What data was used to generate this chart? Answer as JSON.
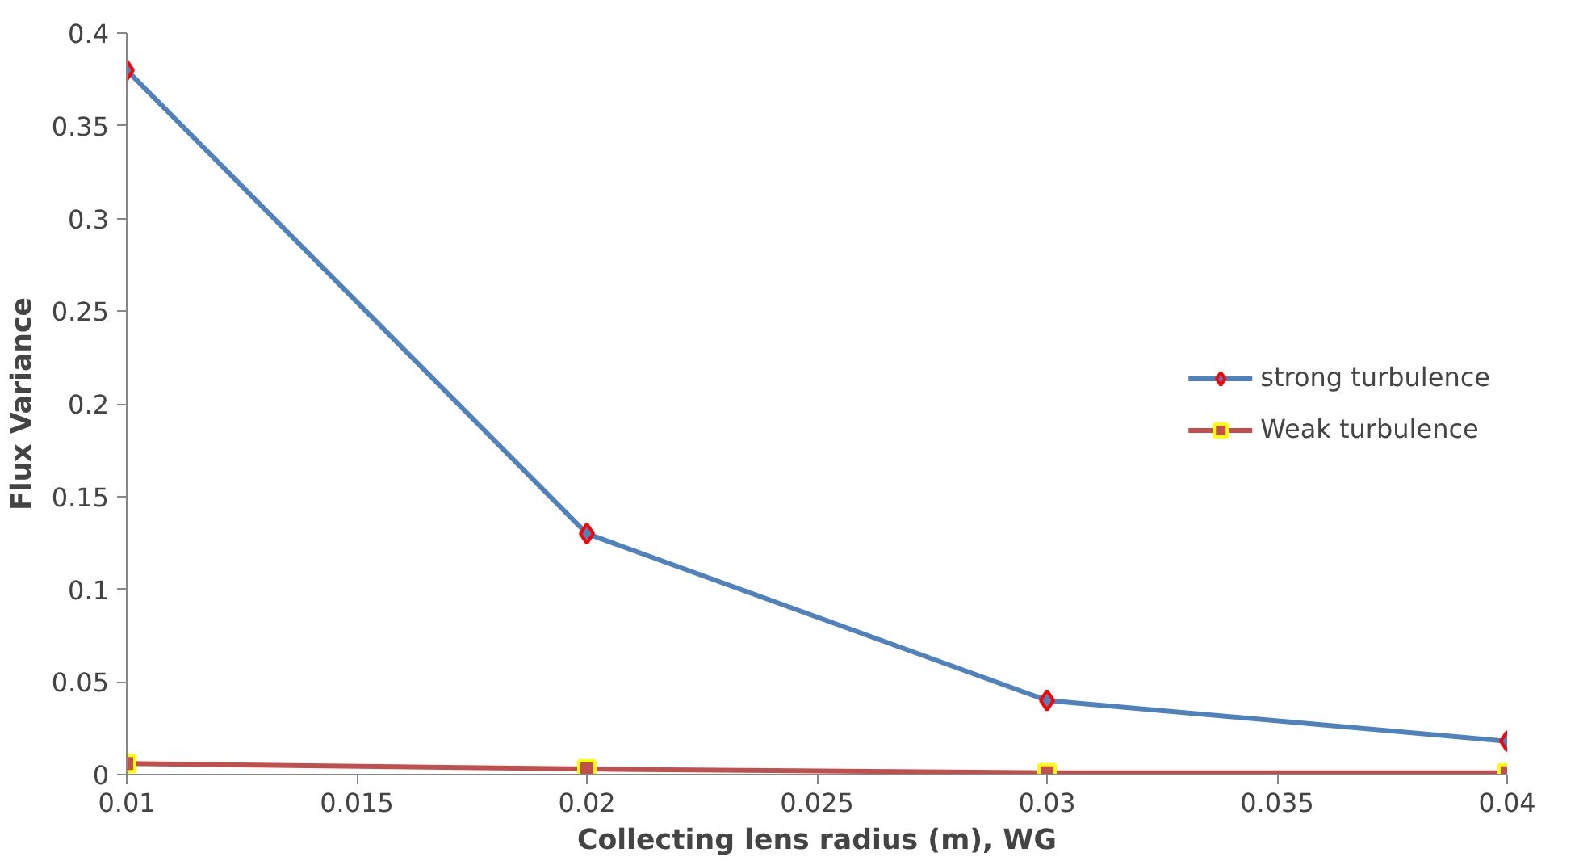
{
  "chart_data": {
    "type": "line",
    "xlabel": "Collecting lens radius (m), WG",
    "ylabel": "Flux Variance",
    "x": [
      0.01,
      0.02,
      0.03,
      0.04
    ],
    "series": [
      {
        "name": "strong turbulence",
        "color": "#4f81bd",
        "marker": "diamond",
        "values": [
          0.38,
          0.13,
          0.04,
          0.018
        ]
      },
      {
        "name": "Weak turbulence",
        "color": "#c0504d",
        "marker": "square",
        "values": [
          0.006,
          0.003,
          0.001,
          0.001
        ]
      }
    ],
    "xlim": [
      0.01,
      0.04
    ],
    "xticks": [
      0.01,
      0.015,
      0.02,
      0.025,
      0.03,
      0.035,
      0.04
    ],
    "ylim": [
      0,
      0.4
    ],
    "yticks": [
      0,
      0.05,
      0.1,
      0.15,
      0.2,
      0.25,
      0.3,
      0.35,
      0.4
    ],
    "grid": false,
    "legend": "right"
  }
}
